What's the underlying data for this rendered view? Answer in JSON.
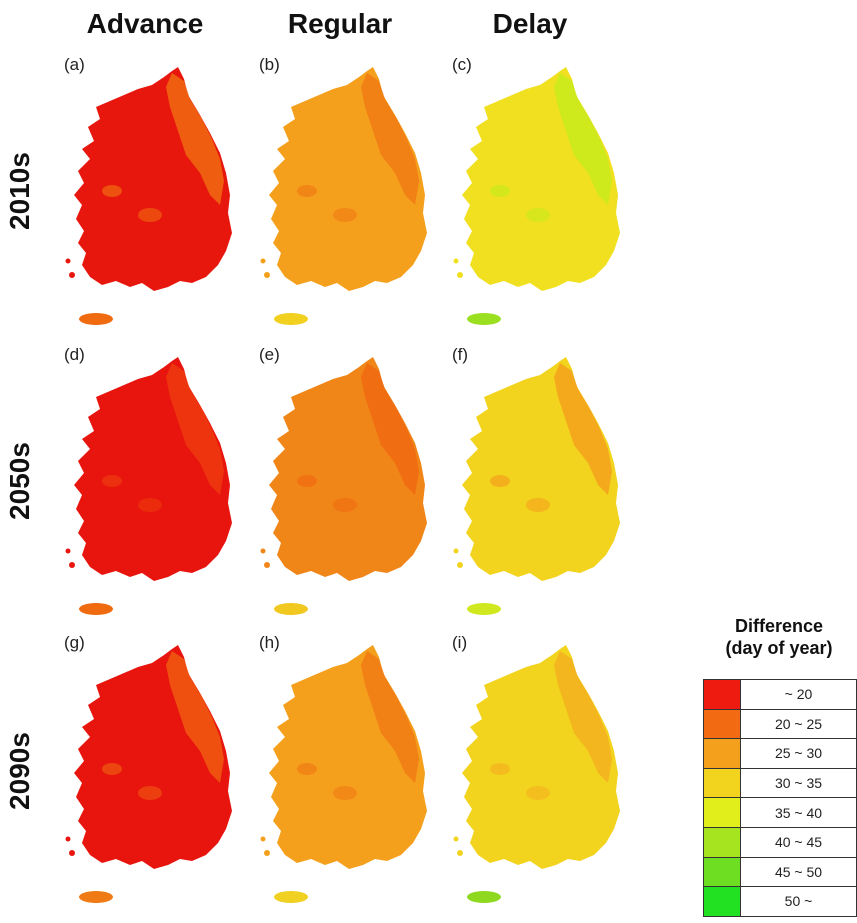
{
  "columns": [
    "Advance",
    "Regular",
    "Delay"
  ],
  "rows": [
    "2010s",
    "2050s",
    "2090s"
  ],
  "panels": [
    {
      "label": "(a)",
      "base": "#e8170e",
      "patch": "#f06a10",
      "island": "#f06a10"
    },
    {
      "label": "(b)",
      "base": "#f5a01c",
      "patch": "#f07a14",
      "island": "#f2d020"
    },
    {
      "label": "(c)",
      "base": "#f0e020",
      "patch": "#c8ea1c",
      "island": "#9be020"
    },
    {
      "label": "(d)",
      "base": "#e8150e",
      "patch": "#ee3a0e",
      "island": "#f06a10"
    },
    {
      "label": "(e)",
      "base": "#f08518",
      "patch": "#f06a10",
      "island": "#f0c820"
    },
    {
      "label": "(f)",
      "base": "#f2d41e",
      "patch": "#f5a01c",
      "island": "#cfe820"
    },
    {
      "label": "(g)",
      "base": "#e8150e",
      "patch": "#f05a10",
      "island": "#f07a14"
    },
    {
      "label": "(h)",
      "base": "#f5a01c",
      "patch": "#f07a14",
      "island": "#f0d020"
    },
    {
      "label": "(i)",
      "base": "#f2d41e",
      "patch": "#f5b01e",
      "island": "#8fd820"
    }
  ],
  "legend": {
    "title_line1": "Difference",
    "title_line2": "(day of year)",
    "items": [
      {
        "label": "~ 20",
        "color": "#ee1c10"
      },
      {
        "label": "20 ~ 25",
        "color": "#f26a12"
      },
      {
        "label": "25 ~ 30",
        "color": "#f5a01c"
      },
      {
        "label": "30 ~ 35",
        "color": "#f2d41e"
      },
      {
        "label": "35 ~ 40",
        "color": "#e2ee1c"
      },
      {
        "label": "40 ~ 45",
        "color": "#a6e420"
      },
      {
        "label": "45 ~ 50",
        "color": "#6ede22"
      },
      {
        "label": "50 ~",
        "color": "#22e022"
      }
    ]
  }
}
